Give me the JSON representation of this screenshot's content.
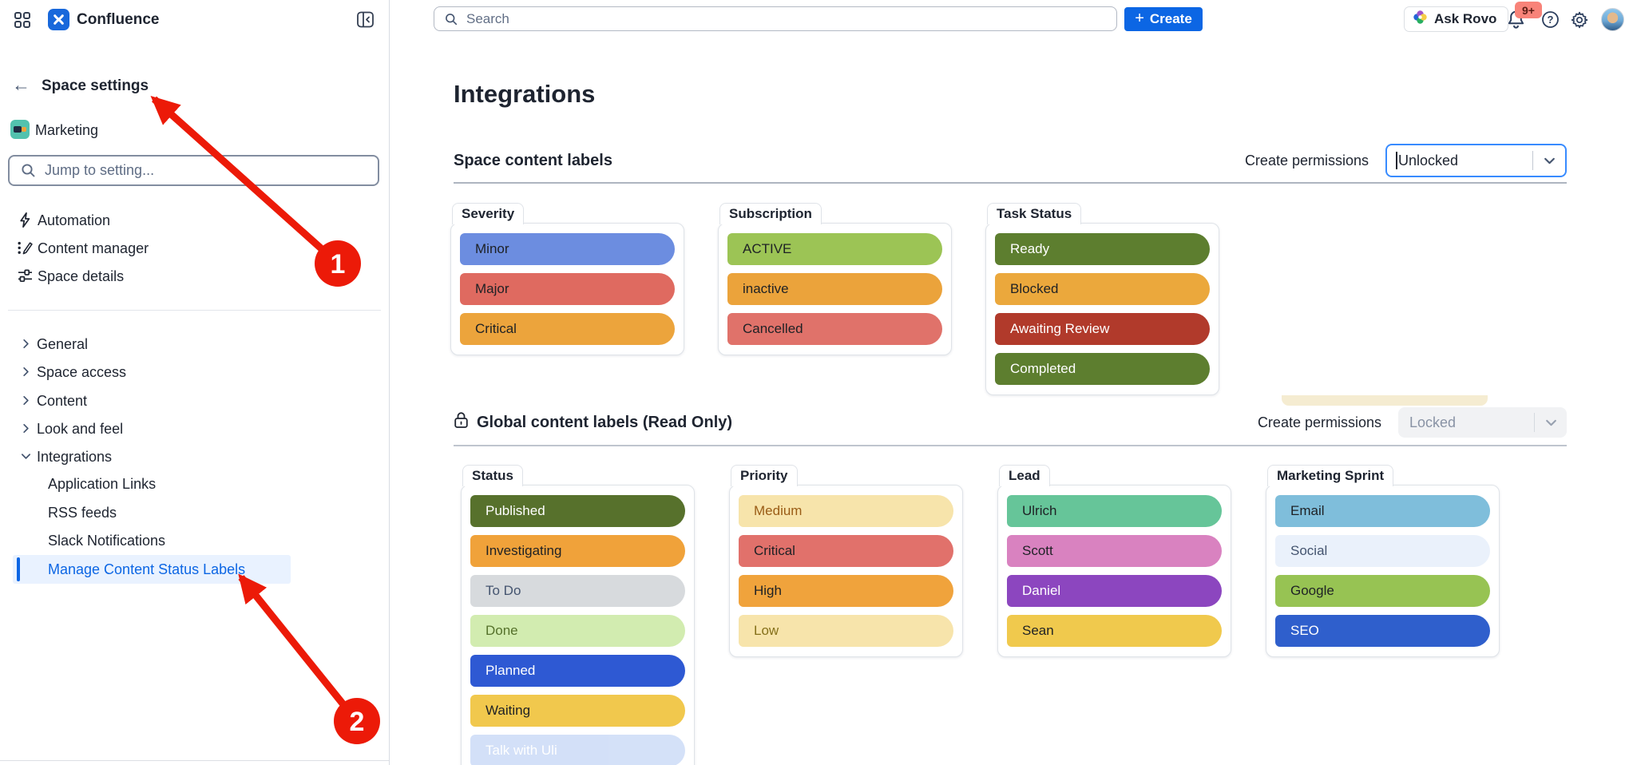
{
  "topbar": {
    "app_name": "Confluence",
    "search_placeholder": "Search",
    "create_label": "Create",
    "ask_rovo_label": "Ask Rovo",
    "notifications_badge": "9+",
    "icons": [
      "app-grid-icon",
      "collapse-sidebar-icon",
      "search-icon",
      "bell-icon",
      "help-icon",
      "settings-icon",
      "avatar"
    ]
  },
  "sidebar": {
    "back_label": "Space settings",
    "space_name": "Marketing",
    "jump_placeholder": "Jump to setting...",
    "top_items": [
      {
        "icon": "bolt-icon",
        "label": "Automation"
      },
      {
        "icon": "content-manager-icon",
        "label": "Content manager"
      },
      {
        "icon": "sliders-icon",
        "label": "Space details"
      }
    ],
    "sections": [
      {
        "label": "General",
        "expanded": false
      },
      {
        "label": "Space access",
        "expanded": false
      },
      {
        "label": "Content",
        "expanded": false
      },
      {
        "label": "Look and feel",
        "expanded": false
      },
      {
        "label": "Integrations",
        "expanded": true
      }
    ],
    "integration_children": [
      {
        "label": "Application Links",
        "selected": false
      },
      {
        "label": "RSS feeds",
        "selected": false
      },
      {
        "label": "Slack Notifications",
        "selected": false
      },
      {
        "label": "Manage Content Status Labels",
        "selected": true
      }
    ],
    "selected_color": "#0C66E4",
    "selected_bg": "#E9F2FF"
  },
  "main": {
    "title": "Integrations",
    "space_labels": {
      "heading": "Space content labels",
      "permissions_label": "Create permissions",
      "permissions_value": "Unlocked",
      "locked": false,
      "groups": [
        {
          "name": "Severity",
          "labels": [
            {
              "text": "Minor",
              "bg": "#6C8DE0",
              "fg": "#1E2125"
            },
            {
              "text": "Major",
              "bg": "#DF6A60",
              "fg": "#1E2125"
            },
            {
              "text": "Critical",
              "bg": "#ECA43C",
              "fg": "#1E2125"
            }
          ]
        },
        {
          "name": "Subscription",
          "labels": [
            {
              "text": "ACTIVE",
              "bg": "#9CC455",
              "fg": "#1E2125"
            },
            {
              "text": "inactive",
              "bg": "#EBA33B",
              "fg": "#1E2125"
            },
            {
              "text": "Cancelled",
              "bg": "#E0726A",
              "fg": "#1E2125"
            }
          ]
        },
        {
          "name": "Task Status",
          "labels": [
            {
              "text": "Ready",
              "bg": "#5D7E2F",
              "fg": "#FFFFFF"
            },
            {
              "text": "Blocked",
              "bg": "#EBA83C",
              "fg": "#1E2125"
            },
            {
              "text": "Awaiting Review",
              "bg": "#B13A2B",
              "fg": "#FFFFFF"
            },
            {
              "text": "Completed",
              "bg": "#5D7E2F",
              "fg": "#FFFFFF"
            }
          ]
        }
      ]
    },
    "global_labels": {
      "heading": "Global content labels (Read Only)",
      "heading_icon": "lock-icon",
      "permissions_label": "Create permissions",
      "permissions_value": "Locked",
      "locked": true,
      "groups": [
        {
          "name": "Status",
          "labels": [
            {
              "text": "Published",
              "bg": "#57712C",
              "fg": "#FFFFFF"
            },
            {
              "text": "Investigating",
              "bg": "#F0A23A",
              "fg": "#1E2125"
            },
            {
              "text": "To Do",
              "bg": "#D7DADD",
              "fg": "#44546F"
            },
            {
              "text": "Done",
              "bg": "#D2ECB0",
              "fg": "#55712B"
            },
            {
              "text": "Planned",
              "bg": "#2E59D3",
              "fg": "#FFFFFF"
            },
            {
              "text": "Waiting",
              "bg": "#F1C84D",
              "fg": "#1E2125"
            },
            {
              "text": "Talk with Uli",
              "bg": "#A9C3F2",
              "fg": "#FFFFFF",
              "faded": true
            }
          ]
        },
        {
          "name": "Priority",
          "labels": [
            {
              "text": "Medium",
              "bg": "#F7E4AB",
              "fg": "#9A5C16"
            },
            {
              "text": "Critical",
              "bg": "#E1716B",
              "fg": "#1E2125"
            },
            {
              "text": "High",
              "bg": "#F0A33C",
              "fg": "#1E2125"
            },
            {
              "text": "Low",
              "bg": "#F7E4AB",
              "fg": "#85701A"
            }
          ]
        },
        {
          "name": "Lead",
          "labels": [
            {
              "text": "Ulrich",
              "bg": "#66C599",
              "fg": "#1E2125"
            },
            {
              "text": "Scott",
              "bg": "#D982C0",
              "fg": "#1E2125"
            },
            {
              "text": "Daniel",
              "bg": "#8C46BF",
              "fg": "#FFFFFF"
            },
            {
              "text": "Sean",
              "bg": "#F0C94D",
              "fg": "#1E2125"
            }
          ]
        },
        {
          "name": "Marketing Sprint",
          "labels": [
            {
              "text": "Email",
              "bg": "#7FBEDB",
              "fg": "#1E2125"
            },
            {
              "text": "Social",
              "bg": "#EAF1FB",
              "fg": "#44546F"
            },
            {
              "text": "Google",
              "bg": "#97C353",
              "fg": "#1E2125"
            },
            {
              "text": "SEO",
              "bg": "#2F5FCC",
              "fg": "#FFFFFF"
            }
          ]
        }
      ]
    }
  },
  "annotations": {
    "color": "#EC1A08",
    "items": [
      {
        "number": "1"
      },
      {
        "number": "2"
      }
    ]
  }
}
